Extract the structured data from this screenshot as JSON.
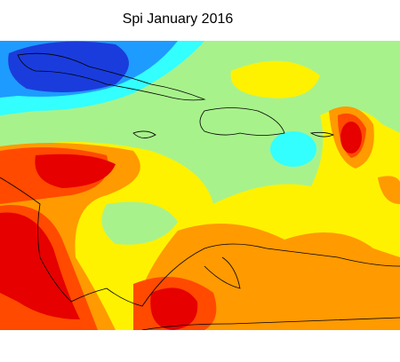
{
  "title": "Spi January 2016"
}
